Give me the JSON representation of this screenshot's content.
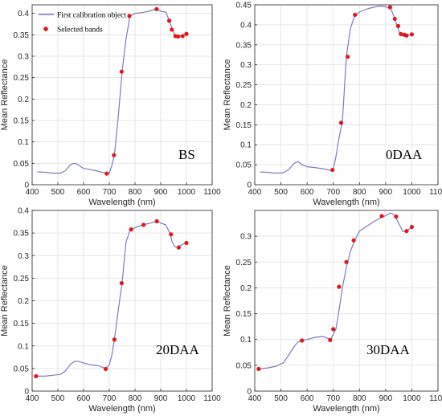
{
  "colors": {
    "curve": "#7b7bbf",
    "marker": "#e3161c",
    "axis": "#262626",
    "grid": "#e6e6e6"
  },
  "legend": {
    "curve_label": "First calibration object",
    "marker_label": "Selected bands"
  },
  "chart_data": [
    {
      "type": "line",
      "panel_label": "BS",
      "xlabel": "Wavelength (nm)",
      "ylabel": "Mean Reflectance",
      "xlim": [
        400,
        1100
      ],
      "ylim": [
        0,
        0.42
      ],
      "xticks": [
        400,
        500,
        600,
        700,
        800,
        900,
        1000,
        1100
      ],
      "yticks": [
        0,
        0.05,
        0.1,
        0.15,
        0.2,
        0.25,
        0.3,
        0.35,
        0.4
      ],
      "ytick_labels": [
        "0",
        "0.05",
        "0.1",
        "0.15",
        "0.2",
        "0.25",
        "0.3",
        "0.35",
        "0.4"
      ],
      "grid": true,
      "legend_position": "top-left",
      "series": [
        {
          "name": "First calibration object",
          "kind": "line",
          "x": [
            420,
            450,
            480,
            510,
            530,
            550,
            565,
            580,
            600,
            630,
            660,
            690,
            700,
            710,
            720,
            735,
            750,
            765,
            780,
            800,
            830,
            860,
            880,
            900,
            920,
            935,
            945,
            955,
            965,
            975,
            990,
            1000
          ],
          "y": [
            0.03,
            0.029,
            0.027,
            0.027,
            0.033,
            0.047,
            0.05,
            0.046,
            0.038,
            0.035,
            0.031,
            0.026,
            0.027,
            0.045,
            0.07,
            0.16,
            0.265,
            0.34,
            0.393,
            0.4,
            0.402,
            0.406,
            0.41,
            0.405,
            0.403,
            0.38,
            0.362,
            0.35,
            0.346,
            0.347,
            0.35,
            0.352
          ]
        },
        {
          "name": "Selected bands",
          "kind": "scatter",
          "x": [
            690,
            718,
            748,
            778,
            884,
            933,
            943,
            957,
            968,
            985,
            1000
          ],
          "y": [
            0.026,
            0.069,
            0.264,
            0.394,
            0.41,
            0.383,
            0.362,
            0.347,
            0.346,
            0.347,
            0.352
          ]
        }
      ]
    },
    {
      "type": "line",
      "panel_label": "0DAA",
      "xlabel": "Wavelength (nm)",
      "ylabel": "Mean Reflectance",
      "xlim": [
        400,
        1100
      ],
      "ylim": [
        0,
        0.45
      ],
      "xticks": [
        400,
        500,
        600,
        700,
        800,
        900,
        1000,
        1100
      ],
      "yticks": [
        0,
        0.05,
        0.1,
        0.15,
        0.2,
        0.25,
        0.3,
        0.35,
        0.4,
        0.45
      ],
      "ytick_labels": [
        "0",
        "0.05",
        "0.1",
        "0.15",
        "0.2",
        "0.25",
        "0.3",
        "0.35",
        "0.4",
        "0.45"
      ],
      "grid": true,
      "series": [
        {
          "name": "First calibration object",
          "kind": "line",
          "x": [
            420,
            450,
            480,
            510,
            530,
            550,
            565,
            580,
            600,
            630,
            660,
            690,
            700,
            710,
            720,
            735,
            750,
            765,
            780,
            800,
            830,
            860,
            880,
            900,
            920,
            935,
            945,
            955,
            965,
            975,
            990,
            1000
          ],
          "y": [
            0.032,
            0.031,
            0.029,
            0.03,
            0.038,
            0.053,
            0.058,
            0.05,
            0.045,
            0.043,
            0.04,
            0.036,
            0.038,
            0.07,
            0.11,
            0.16,
            0.32,
            0.39,
            0.42,
            0.432,
            0.44,
            0.445,
            0.447,
            0.445,
            0.44,
            0.415,
            0.395,
            0.377,
            0.372,
            0.373,
            0.375,
            0.376
          ]
        },
        {
          "name": "Selected bands",
          "kind": "scatter",
          "x": [
            697,
            730,
            755,
            783,
            917,
            935,
            948,
            958,
            972,
            980,
            1000
          ],
          "y": [
            0.037,
            0.155,
            0.32,
            0.425,
            0.444,
            0.415,
            0.397,
            0.377,
            0.375,
            0.373,
            0.376
          ]
        }
      ]
    },
    {
      "type": "line",
      "panel_label": "20DAA",
      "xlabel": "Wavelength (nm)",
      "ylabel": "Mean Reflectance",
      "xlim": [
        400,
        1100
      ],
      "ylim": [
        0,
        0.4
      ],
      "xticks": [
        400,
        500,
        600,
        700,
        800,
        900,
        1000,
        1100
      ],
      "yticks": [
        0,
        0.05,
        0.1,
        0.15,
        0.2,
        0.25,
        0.3,
        0.35,
        0.4
      ],
      "ytick_labels": [
        "0",
        "0.05",
        "0.1",
        "0.15",
        "0.2",
        "0.25",
        "0.3",
        "0.35",
        "0.4"
      ],
      "grid": true,
      "series": [
        {
          "name": "First calibration object",
          "kind": "line",
          "x": [
            415,
            450,
            480,
            510,
            530,
            550,
            565,
            580,
            600,
            630,
            660,
            685,
            700,
            710,
            720,
            735,
            750,
            765,
            780,
            800,
            830,
            860,
            885,
            900,
            920,
            935,
            945,
            955,
            965,
            975,
            990,
            1000
          ],
          "y": [
            0.033,
            0.033,
            0.035,
            0.037,
            0.045,
            0.06,
            0.066,
            0.066,
            0.062,
            0.058,
            0.056,
            0.05,
            0.058,
            0.08,
            0.115,
            0.18,
            0.24,
            0.33,
            0.355,
            0.362,
            0.368,
            0.372,
            0.376,
            0.372,
            0.368,
            0.35,
            0.33,
            0.32,
            0.318,
            0.322,
            0.326,
            0.328
          ]
        },
        {
          "name": "Selected bands",
          "kind": "scatter",
          "x": [
            415,
            686,
            720,
            748,
            785,
            833,
            885,
            940,
            970,
            1000
          ],
          "y": [
            0.033,
            0.049,
            0.114,
            0.239,
            0.358,
            0.368,
            0.376,
            0.347,
            0.318,
            0.328
          ]
        }
      ]
    },
    {
      "type": "line",
      "panel_label": "30DAA",
      "xlabel": "Wavelength (nm)",
      "ylabel": "Mean Reflectance",
      "xlim": [
        400,
        1100
      ],
      "ylim": [
        0,
        0.35
      ],
      "xticks": [
        400,
        500,
        600,
        700,
        800,
        900,
        1000,
        1100
      ],
      "yticks": [
        0,
        0.05,
        0.1,
        0.15,
        0.2,
        0.25,
        0.3
      ],
      "ytick_labels": [
        "0",
        "0.05",
        "0.1",
        "0.15",
        "0.2",
        "0.25",
        "0.3"
      ],
      "grid": true,
      "series": [
        {
          "name": "First calibration object",
          "kind": "line",
          "x": [
            415,
            450,
            480,
            510,
            530,
            550,
            565,
            580,
            600,
            630,
            660,
            690,
            700,
            710,
            720,
            735,
            750,
            765,
            780,
            800,
            830,
            860,
            880,
            900,
            920,
            935,
            945,
            955,
            965,
            975,
            990,
            1000
          ],
          "y": [
            0.043,
            0.045,
            0.048,
            0.055,
            0.07,
            0.086,
            0.095,
            0.098,
            0.1,
            0.104,
            0.106,
            0.1,
            0.11,
            0.12,
            0.15,
            0.2,
            0.24,
            0.27,
            0.29,
            0.31,
            0.32,
            0.33,
            0.335,
            0.34,
            0.345,
            0.34,
            0.33,
            0.32,
            0.31,
            0.308,
            0.314,
            0.318
          ]
        },
        {
          "name": "Selected bands",
          "kind": "scatter",
          "x": [
            415,
            580,
            688,
            700,
            722,
            750,
            778,
            885,
            940,
            980,
            1000
          ],
          "y": [
            0.043,
            0.098,
            0.099,
            0.12,
            0.202,
            0.25,
            0.292,
            0.339,
            0.338,
            0.31,
            0.318
          ]
        }
      ]
    }
  ]
}
